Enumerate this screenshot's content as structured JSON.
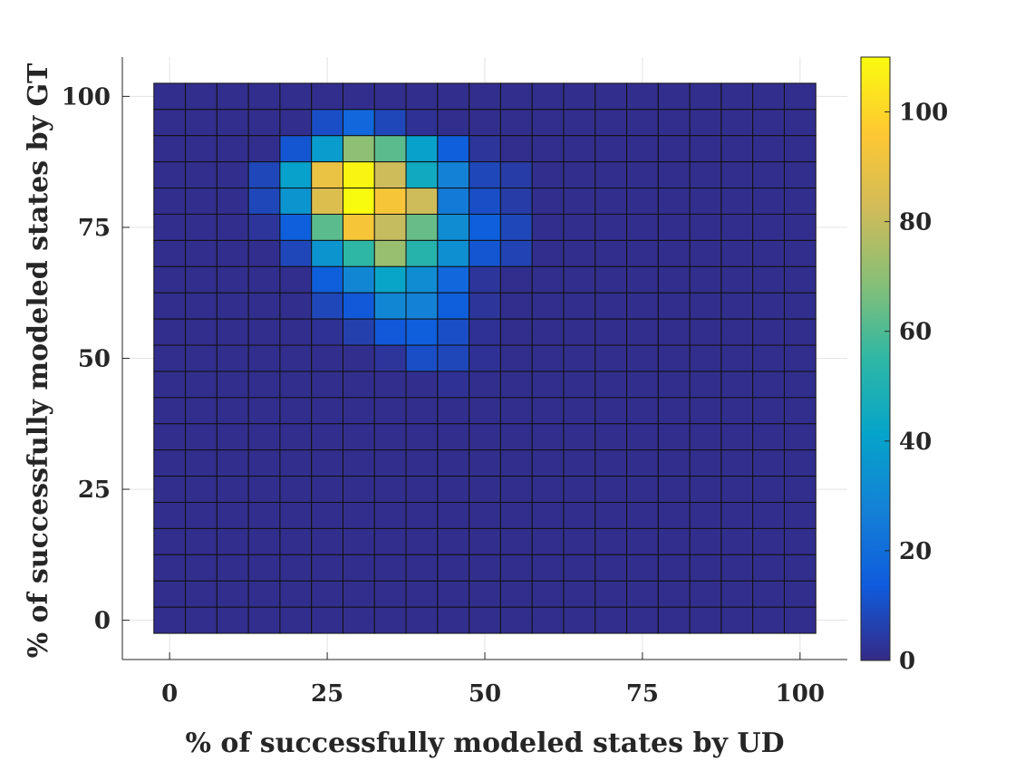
{
  "chart_data": {
    "type": "heatmap",
    "xlabel": "% of successfully modeled states by UD",
    "ylabel": "% of successfully modeled states by GT",
    "x_ticks": [
      0,
      25,
      50,
      75,
      100
    ],
    "y_ticks": [
      0,
      25,
      50,
      75,
      100
    ],
    "x_range": [
      -7.5,
      107.5
    ],
    "y_range": [
      -7.5,
      107.5
    ],
    "x_centers": [
      0,
      5,
      10,
      15,
      20,
      25,
      30,
      35,
      40,
      45,
      50,
      55,
      60,
      65,
      70,
      75,
      80,
      85,
      90,
      95,
      100
    ],
    "y_centers": [
      0,
      5,
      10,
      15,
      20,
      25,
      30,
      35,
      40,
      45,
      50,
      55,
      60,
      65,
      70,
      75,
      80,
      85,
      90,
      95,
      100
    ],
    "colorbar": {
      "range": [
        0,
        110
      ],
      "ticks": [
        0,
        20,
        40,
        60,
        80,
        100
      ]
    },
    "grid": true,
    "values_rows_top_is_y100": [
      [
        1,
        1,
        1,
        1,
        1,
        1,
        1,
        1,
        1,
        1,
        1,
        1,
        1,
        1,
        1,
        1,
        1,
        1,
        1,
        1,
        1
      ],
      [
        1,
        1,
        1,
        1,
        1,
        10,
        18,
        8,
        2,
        1,
        1,
        1,
        1,
        1,
        1,
        1,
        1,
        1,
        1,
        1,
        1
      ],
      [
        1,
        1,
        1,
        1,
        12,
        38,
        70,
        62,
        40,
        15,
        3,
        1,
        1,
        1,
        1,
        1,
        1,
        1,
        1,
        1,
        1
      ],
      [
        1,
        1,
        1,
        8,
        40,
        90,
        108,
        82,
        45,
        28,
        8,
        5,
        1,
        1,
        1,
        1,
        1,
        1,
        1,
        1,
        1
      ],
      [
        1,
        1,
        1,
        8,
        35,
        86,
        110,
        94,
        82,
        25,
        10,
        5,
        1,
        1,
        1,
        1,
        1,
        1,
        1,
        1,
        1
      ],
      [
        1,
        1,
        1,
        3,
        15,
        62,
        94,
        80,
        64,
        32,
        15,
        8,
        1,
        1,
        1,
        1,
        1,
        1,
        1,
        1,
        1
      ],
      [
        1,
        1,
        1,
        1,
        8,
        35,
        55,
        72,
        52,
        33,
        12,
        7,
        1,
        1,
        1,
        1,
        1,
        1,
        1,
        1,
        1
      ],
      [
        1,
        1,
        1,
        1,
        1,
        15,
        30,
        42,
        32,
        18,
        3,
        1,
        1,
        1,
        1,
        1,
        1,
        1,
        1,
        1,
        1
      ],
      [
        1,
        1,
        1,
        1,
        1,
        8,
        13,
        30,
        28,
        15,
        3,
        1,
        1,
        1,
        1,
        1,
        1,
        1,
        1,
        1,
        1
      ],
      [
        1,
        1,
        1,
        1,
        1,
        2,
        6,
        13,
        15,
        10,
        2,
        1,
        1,
        1,
        1,
        1,
        1,
        1,
        1,
        1,
        1
      ],
      [
        1,
        1,
        1,
        1,
        1,
        1,
        1,
        3,
        10,
        8,
        2,
        1,
        1,
        1,
        1,
        1,
        1,
        1,
        1,
        1,
        1
      ],
      [
        1,
        1,
        1,
        1,
        1,
        1,
        1,
        1,
        1,
        2,
        1,
        1,
        1,
        1,
        1,
        1,
        1,
        1,
        1,
        1,
        1
      ],
      [
        1,
        1,
        1,
        1,
        1,
        1,
        1,
        1,
        1,
        1,
        1,
        1,
        1,
        1,
        1,
        1,
        1,
        1,
        1,
        1,
        1
      ],
      [
        1,
        1,
        1,
        1,
        1,
        1,
        1,
        1,
        1,
        1,
        1,
        1,
        1,
        1,
        1,
        1,
        1,
        1,
        1,
        1,
        1
      ],
      [
        1,
        1,
        1,
        1,
        1,
        1,
        1,
        1,
        1,
        1,
        1,
        1,
        1,
        1,
        1,
        1,
        1,
        1,
        1,
        1,
        1
      ],
      [
        1,
        1,
        1,
        1,
        1,
        1,
        1,
        1,
        1,
        1,
        1,
        1,
        1,
        1,
        1,
        1,
        1,
        1,
        1,
        1,
        1
      ],
      [
        1,
        1,
        1,
        1,
        1,
        1,
        1,
        1,
        1,
        1,
        1,
        1,
        1,
        1,
        1,
        1,
        1,
        1,
        1,
        1,
        1
      ],
      [
        1,
        1,
        1,
        1,
        1,
        1,
        1,
        1,
        1,
        1,
        1,
        1,
        1,
        1,
        1,
        1,
        1,
        1,
        1,
        1,
        1
      ],
      [
        1,
        1,
        1,
        1,
        1,
        1,
        1,
        1,
        1,
        1,
        1,
        1,
        1,
        1,
        1,
        1,
        1,
        1,
        1,
        1,
        1
      ],
      [
        1,
        1,
        1,
        1,
        1,
        1,
        1,
        1,
        1,
        1,
        1,
        1,
        1,
        1,
        1,
        1,
        1,
        1,
        1,
        1,
        1
      ],
      [
        1,
        1,
        1,
        1,
        1,
        1,
        1,
        1,
        1,
        1,
        1,
        1,
        1,
        1,
        1,
        1,
        1,
        1,
        1,
        1,
        1
      ]
    ]
  }
}
